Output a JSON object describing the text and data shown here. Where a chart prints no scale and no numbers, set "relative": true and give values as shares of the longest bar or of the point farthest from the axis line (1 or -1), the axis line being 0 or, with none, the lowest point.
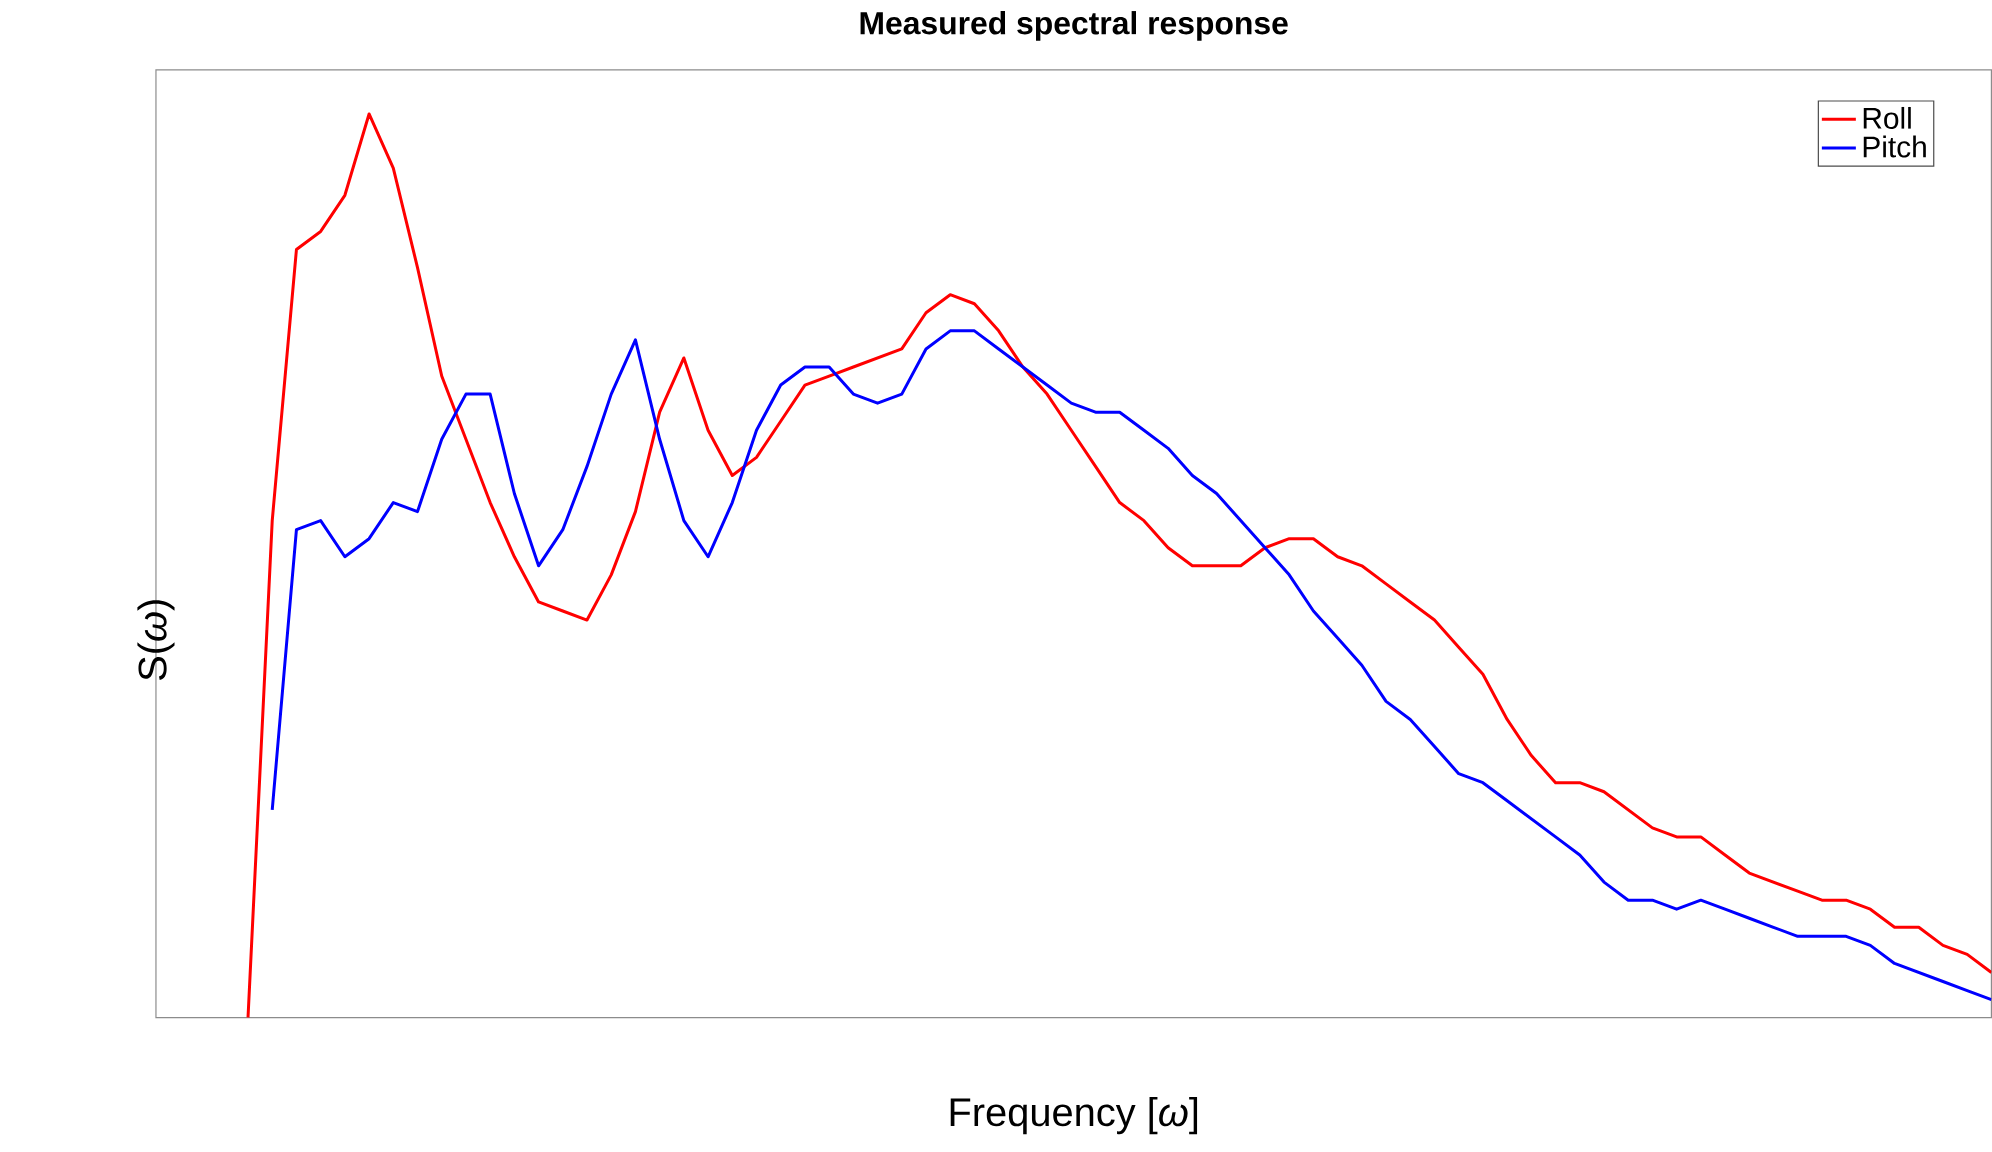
{
  "chart_data": {
    "type": "line",
    "title": "Measured spectral response",
    "xlabel": "Frequency [*ω*]",
    "ylabel": "S(*ω*)",
    "relative": true,
    "legend": "top right",
    "line_style": "solid",
    "marker": "none",
    "categories": [
      null,
      null,
      null,
      null,
      null,
      null,
      null,
      null,
      null,
      null,
      null,
      null,
      null,
      null,
      null,
      null,
      null,
      null,
      null,
      null,
      null,
      null,
      null,
      null,
      null,
      null,
      null,
      null,
      null,
      null,
      null,
      null,
      null,
      null,
      null,
      null,
      null,
      null,
      null,
      null,
      null,
      null,
      null,
      null,
      null,
      null,
      null,
      null,
      null,
      null,
      null,
      null,
      null,
      null,
      null,
      null,
      null,
      null,
      null,
      null,
      null,
      null,
      null,
      null,
      null,
      null,
      null,
      null,
      null,
      null,
      null,
      null,
      null
    ],
    "series": [
      {
        "name": "Roll",
        "color": "#ff0000",
        "values": [
          0,
          0.55,
          0.85,
          0.87,
          0.91,
          1.0,
          0.94,
          0.83,
          0.71,
          0.64,
          0.57,
          0.51,
          0.46,
          0.45,
          0.44,
          0.49,
          0.56,
          0.67,
          0.73,
          0.65,
          0.6,
          0.62,
          0.66,
          0.7,
          0.71,
          0.72,
          0.73,
          0.74,
          0.78,
          0.8,
          0.79,
          0.76,
          0.72,
          0.69,
          0.65,
          0.61,
          0.57,
          0.55,
          0.52,
          0.5,
          0.5,
          0.5,
          0.52,
          0.53,
          0.53,
          0.51,
          0.5,
          0.48,
          0.46,
          0.44,
          0.41,
          0.38,
          0.33,
          0.29,
          0.26,
          0.26,
          0.25,
          0.23,
          0.21,
          0.2,
          0.2,
          0.18,
          0.16,
          0.15,
          0.14,
          0.13,
          0.13,
          0.12,
          0.1,
          0.1,
          0.08,
          0.07,
          0.05
        ]
      },
      {
        "name": "Pitch",
        "color": "#0000ff",
        "values": [
          null,
          0.23,
          0.54,
          0.55,
          0.51,
          0.53,
          0.57,
          0.56,
          0.64,
          0.69,
          0.69,
          0.58,
          0.5,
          0.54,
          0.61,
          0.69,
          0.75,
          0.64,
          0.55,
          0.51,
          0.57,
          0.65,
          0.7,
          0.72,
          0.72,
          0.69,
          0.68,
          0.69,
          0.74,
          0.76,
          0.76,
          0.74,
          0.72,
          0.7,
          0.68,
          0.67,
          0.67,
          0.65,
          0.63,
          0.6,
          0.58,
          0.55,
          0.52,
          0.49,
          0.45,
          0.42,
          0.39,
          0.35,
          0.33,
          0.3,
          0.27,
          0.26,
          0.24,
          0.22,
          0.2,
          0.18,
          0.15,
          0.13,
          0.13,
          0.12,
          0.13,
          0.12,
          0.11,
          0.1,
          0.09,
          0.09,
          0.09,
          0.08,
          0.06,
          0.05,
          0.04,
          0.03,
          0.02
        ]
      }
    ]
  }
}
